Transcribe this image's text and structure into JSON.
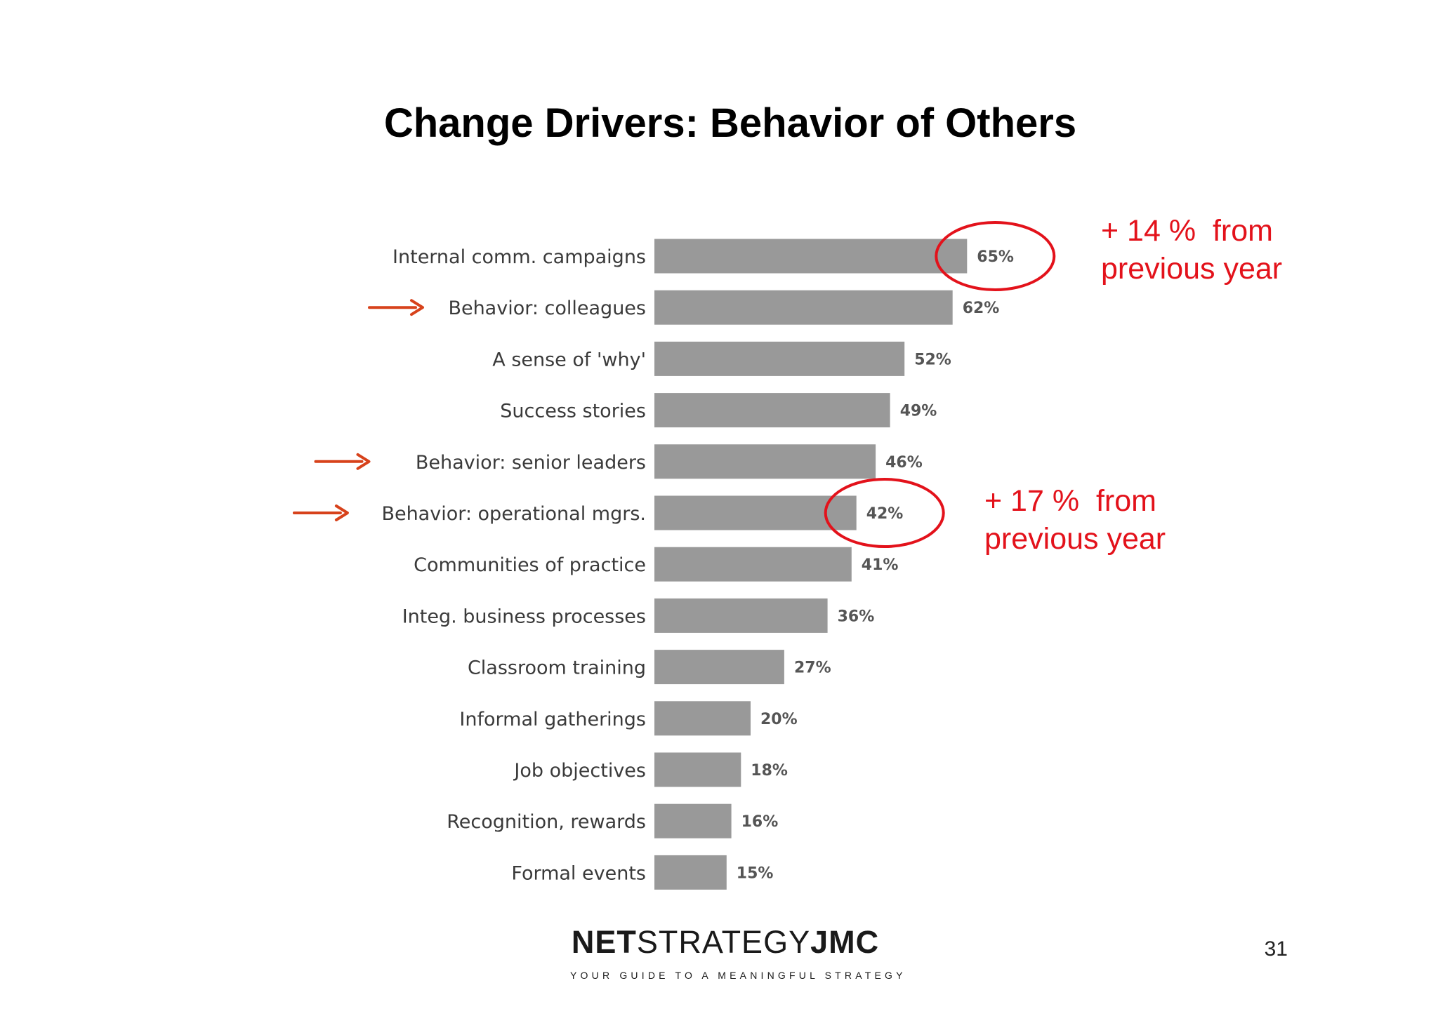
{
  "slide": {
    "title": "Change Drivers: Behavior of Others",
    "page_number": "31"
  },
  "chart_data": {
    "type": "bar",
    "orientation": "horizontal",
    "title": "",
    "categories": [
      "Internal comm. campaigns",
      "Behavior: colleagues",
      "A sense of 'why'",
      "Success stories",
      "Behavior: senior  leaders",
      "Behavior: operational mgrs.",
      "Communities of practice",
      "Integ. business processes",
      "Classroom training",
      "Informal gatherings",
      "Job objectives",
      "Recognition, rewards",
      "Formal events"
    ],
    "values": [
      65,
      62,
      52,
      49,
      46,
      42,
      41,
      36,
      27,
      20,
      18,
      16,
      15
    ],
    "value_labels": [
      "65%",
      "62%",
      "52%",
      "49%",
      "46%",
      "42%",
      "41%",
      "36%",
      "27%",
      "20%",
      "18%",
      "16%",
      "15%"
    ],
    "xlim": [
      0,
      100
    ],
    "grid": false,
    "bar_color": "#999999",
    "highlighted_categories": [
      "Behavior: colleagues",
      "Behavior: senior  leaders",
      "Behavior: operational mgrs."
    ],
    "circled_values": [
      "65%",
      "42%"
    ]
  },
  "annotations": {
    "note_top": {
      "line1": "+ 14 %  from",
      "line2": "previous year"
    },
    "note_mid": {
      "line1": "+ 17 %  from",
      "line2": "previous year"
    },
    "annotation_color": "#e3121b",
    "arrow_color": "#d7421b"
  },
  "logo": {
    "net": "NET",
    "strategy": "STRATEGY",
    "jmc": "JMC",
    "tagline": "YOUR GUIDE TO A MEANINGFUL STRATEGY"
  }
}
